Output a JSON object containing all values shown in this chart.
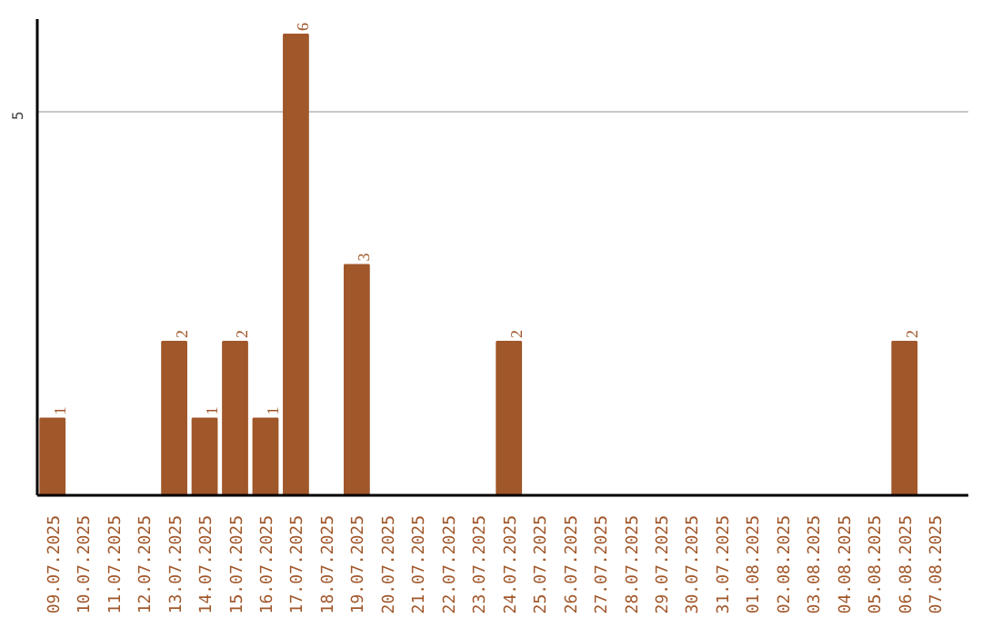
{
  "chart_data": {
    "type": "bar",
    "categories": [
      "09.07.2025",
      "10.07.2025",
      "11.07.2025",
      "12.07.2025",
      "13.07.2025",
      "14.07.2025",
      "15.07.2025",
      "16.07.2025",
      "17.07.2025",
      "18.07.2025",
      "19.07.2025",
      "20.07.2025",
      "21.07.2025",
      "22.07.2025",
      "23.07.2025",
      "24.07.2025",
      "25.07.2025",
      "26.07.2025",
      "27.07.2025",
      "28.07.2025",
      "29.07.2025",
      "30.07.2025",
      "31.07.2025",
      "01.08.2025",
      "02.08.2025",
      "03.08.2025",
      "04.08.2025",
      "05.08.2025",
      "06.08.2025",
      "07.08.2025"
    ],
    "values": [
      1,
      0,
      0,
      0,
      2,
      1,
      2,
      1,
      6,
      0,
      3,
      0,
      0,
      0,
      0,
      2,
      0,
      0,
      0,
      0,
      0,
      0,
      0,
      0,
      0,
      0,
      0,
      0,
      2,
      0
    ],
    "color": "#a0572a",
    "value_labels": [
      "1",
      null,
      null,
      null,
      "2",
      "1",
      "2",
      "1",
      "6",
      null,
      "3",
      null,
      null,
      null,
      null,
      "2",
      null,
      null,
      null,
      null,
      null,
      null,
      null,
      null,
      null,
      null,
      null,
      null,
      "2",
      null
    ],
    "ylim": [
      0,
      6.2
    ],
    "yticks": [
      5
    ],
    "grid": "y"
  }
}
